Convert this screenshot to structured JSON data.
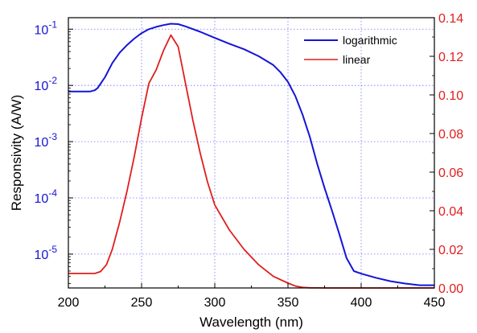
{
  "chart_data": {
    "type": "line",
    "xlabel": "Wavelength (nm)",
    "ylabel_left": "Responsivity (A/W)",
    "ylabel_right": "",
    "xlim": [
      200,
      450
    ],
    "x_ticks": [
      "200",
      "250",
      "300",
      "350",
      "400",
      "450"
    ],
    "y_left_scale": "log",
    "y_left_range": [
      2.5e-06,
      0.16
    ],
    "y_left_ticks": [
      {
        "value": 1e-05,
        "base": "10",
        "exp": "-5"
      },
      {
        "value": 0.0001,
        "base": "10",
        "exp": "-4"
      },
      {
        "value": 0.001,
        "base": "10",
        "exp": "-3"
      },
      {
        "value": 0.01,
        "base": "10",
        "exp": "-2"
      },
      {
        "value": 0.1,
        "base": "10",
        "exp": "-1"
      }
    ],
    "y_right_scale": "linear",
    "y_right_range": [
      0,
      0.14
    ],
    "y_right_ticks": [
      "0.00",
      "0.02",
      "0.04",
      "0.06",
      "0.08",
      "0.10",
      "0.12",
      "0.14"
    ],
    "grid": true,
    "legend_position": "top-right",
    "colors": {
      "logarithmic": "#1414d8",
      "linear": "#e01e1e",
      "grid": "#7070ff"
    },
    "series": [
      {
        "name": "logarithmic",
        "axis": "left",
        "color": "#1414d8",
        "x": [
          200,
          205,
          210,
          215,
          218,
          220,
          225,
          230,
          235,
          240,
          245,
          250,
          255,
          260,
          265,
          270,
          275,
          280,
          290,
          300,
          310,
          320,
          330,
          340,
          345,
          350,
          355,
          360,
          365,
          370,
          375,
          380,
          385,
          390,
          395,
          400,
          410,
          420,
          430,
          440,
          450
        ],
        "y": [
          0.0078,
          0.0078,
          0.0078,
          0.0078,
          0.0082,
          0.009,
          0.014,
          0.025,
          0.038,
          0.052,
          0.068,
          0.085,
          0.1,
          0.11,
          0.118,
          0.125,
          0.123,
          0.112,
          0.09,
          0.07,
          0.055,
          0.044,
          0.033,
          0.023,
          0.017,
          0.0115,
          0.0065,
          0.003,
          0.0012,
          0.0004,
          0.00015,
          6e-05,
          2.3e-05,
          8.5e-06,
          5e-06,
          4.5e-06,
          3.8e-06,
          3.3e-06,
          3e-06,
          2.8e-06,
          2.8e-06
        ]
      },
      {
        "name": "linear",
        "axis": "right",
        "color": "#e01e1e",
        "x": [
          200,
          210,
          218,
          222,
          226,
          230,
          235,
          240,
          245,
          250,
          255,
          260,
          265,
          270,
          275,
          280,
          285,
          290,
          295,
          300,
          310,
          320,
          330,
          340,
          350,
          355,
          360,
          365,
          370,
          375,
          380,
          390,
          400,
          410,
          420,
          430,
          440,
          450
        ],
        "y": [
          0.0075,
          0.0075,
          0.0075,
          0.0085,
          0.012,
          0.02,
          0.034,
          0.05,
          0.068,
          0.088,
          0.106,
          0.113,
          0.123,
          0.131,
          0.125,
          0.106,
          0.087,
          0.07,
          0.055,
          0.043,
          0.03,
          0.02,
          0.012,
          0.006,
          0.0025,
          0.001,
          0.0003,
          0.0001,
          4e-05,
          1e-05,
          0,
          0,
          0,
          0,
          0,
          0,
          0,
          0
        ]
      }
    ]
  }
}
